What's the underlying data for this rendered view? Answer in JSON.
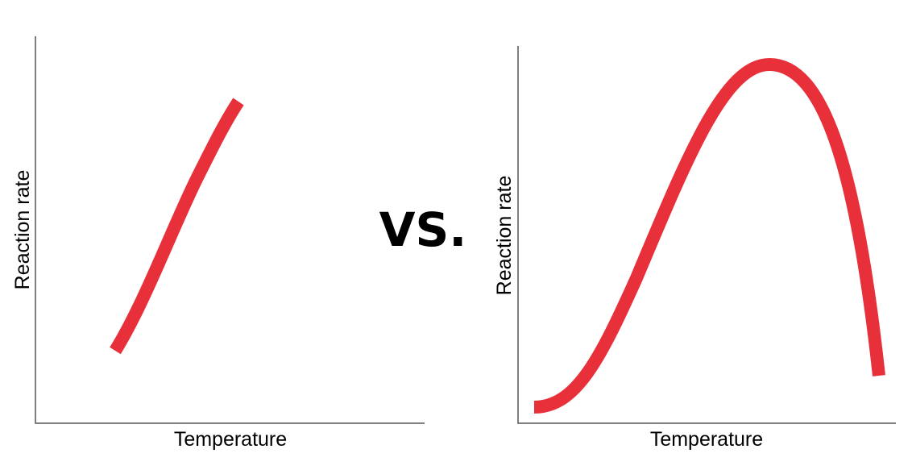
{
  "panels": [
    {
      "x_label": "Temperature",
      "y_label": "Reaction rate"
    },
    {
      "x_label": "Temperature",
      "y_label": "Reaction rate"
    }
  ],
  "separator": "VS."
}
